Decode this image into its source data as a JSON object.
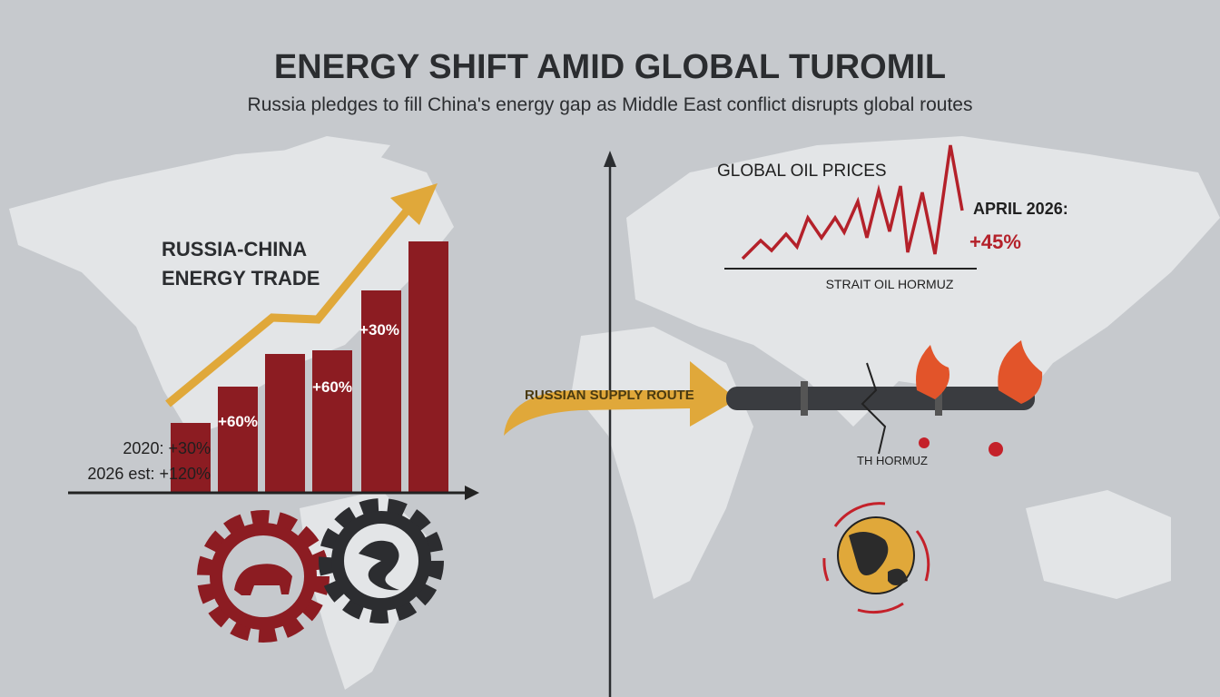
{
  "header": {
    "title": "ENERGY SHIFT AMID GLOBAL TUROMIL",
    "subtitle": "Russia pledges to fill China's energy gap as Middle East conflict disrupts global routes"
  },
  "trade_panel": {
    "title_lines": [
      "RUSSIA-CHINA",
      "ENERGY TRADE"
    ],
    "bar_labels": [
      "+60%",
      "+60%",
      "+30%"
    ],
    "notes": [
      "2020: +30%",
      "2026 est: +120%"
    ]
  },
  "oil_panel": {
    "title": "GLOBAL OIL PRICES",
    "date": "APRIL 2026:",
    "change": "+45%",
    "axis_label": "STRAIT OIL HORMUZ"
  },
  "route": {
    "label": "RUSSIAN SUPPLY ROUTE",
    "hormuz_label": "TH HORMUZ"
  }
}
